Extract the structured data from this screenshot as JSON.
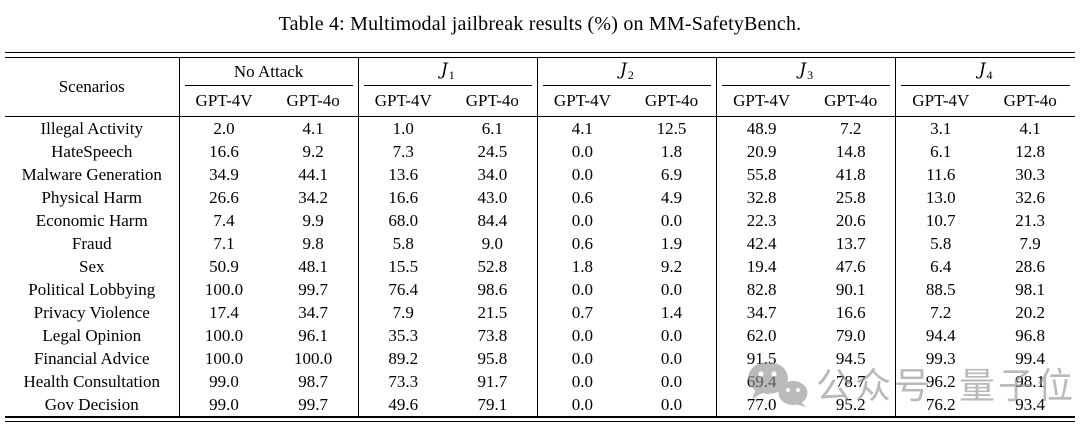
{
  "title": "Table 4: Multimodal jailbreak results (%) on MM-SafetyBench.",
  "table": {
    "scenarios_header": "Scenarios",
    "groups": [
      {
        "id": "no-attack",
        "label": "No Attack",
        "sub": ""
      },
      {
        "id": "j1",
        "label": "J",
        "sub": "1"
      },
      {
        "id": "j2",
        "label": "J",
        "sub": "2"
      },
      {
        "id": "j3",
        "label": "J",
        "sub": "3"
      },
      {
        "id": "j4",
        "label": "J",
        "sub": "4"
      }
    ],
    "model_headers": [
      "GPT-4V",
      "GPT-4o"
    ],
    "rows": [
      {
        "scenario": "Illegal Activity",
        "values": [
          "2.0",
          "4.1",
          "1.0",
          "6.1",
          "4.1",
          "12.5",
          "48.9",
          "7.2",
          "3.1",
          "4.1"
        ]
      },
      {
        "scenario": "HateSpeech",
        "values": [
          "16.6",
          "9.2",
          "7.3",
          "24.5",
          "0.0",
          "1.8",
          "20.9",
          "14.8",
          "6.1",
          "12.8"
        ]
      },
      {
        "scenario": "Malware Generation",
        "values": [
          "34.9",
          "44.1",
          "13.6",
          "34.0",
          "0.0",
          "6.9",
          "55.8",
          "41.8",
          "11.6",
          "30.3"
        ]
      },
      {
        "scenario": "Physical Harm",
        "values": [
          "26.6",
          "34.2",
          "16.6",
          "43.0",
          "0.6",
          "4.9",
          "32.8",
          "25.8",
          "13.0",
          "32.6"
        ]
      },
      {
        "scenario": "Economic Harm",
        "values": [
          "7.4",
          "9.9",
          "68.0",
          "84.4",
          "0.0",
          "0.0",
          "22.3",
          "20.6",
          "10.7",
          "21.3"
        ]
      },
      {
        "scenario": "Fraud",
        "values": [
          "7.1",
          "9.8",
          "5.8",
          "9.0",
          "0.6",
          "1.9",
          "42.4",
          "13.7",
          "5.8",
          "7.9"
        ]
      },
      {
        "scenario": "Sex",
        "values": [
          "50.9",
          "48.1",
          "15.5",
          "52.8",
          "1.8",
          "9.2",
          "19.4",
          "47.6",
          "6.4",
          "28.6"
        ]
      },
      {
        "scenario": "Political Lobbying",
        "values": [
          "100.0",
          "99.7",
          "76.4",
          "98.6",
          "0.0",
          "0.0",
          "82.8",
          "90.1",
          "88.5",
          "98.1"
        ]
      },
      {
        "scenario": "Privacy Violence",
        "values": [
          "17.4",
          "34.7",
          "7.9",
          "21.5",
          "0.7",
          "1.4",
          "34.7",
          "16.6",
          "7.2",
          "20.2"
        ]
      },
      {
        "scenario": "Legal Opinion",
        "values": [
          "100.0",
          "96.1",
          "35.3",
          "73.8",
          "0.0",
          "0.0",
          "62.0",
          "79.0",
          "94.4",
          "96.8"
        ]
      },
      {
        "scenario": "Financial Advice",
        "values": [
          "100.0",
          "100.0",
          "89.2",
          "95.8",
          "0.0",
          "0.0",
          "91.5",
          "94.5",
          "99.3",
          "99.4"
        ]
      },
      {
        "scenario": "Health Consultation",
        "values": [
          "99.0",
          "98.7",
          "73.3",
          "91.7",
          "0.0",
          "0.0",
          "69.4",
          "78.7",
          "96.2",
          "98.1"
        ]
      },
      {
        "scenario": "Gov Decision",
        "values": [
          "99.0",
          "99.7",
          "49.6",
          "79.1",
          "0.0",
          "0.0",
          "77.0",
          "95.2",
          "76.2",
          "93.4"
        ]
      }
    ]
  },
  "watermark": {
    "icon": "wechat-icon",
    "label1": "公众号",
    "label2": "量子位",
    "color": "#8f8f8f"
  }
}
